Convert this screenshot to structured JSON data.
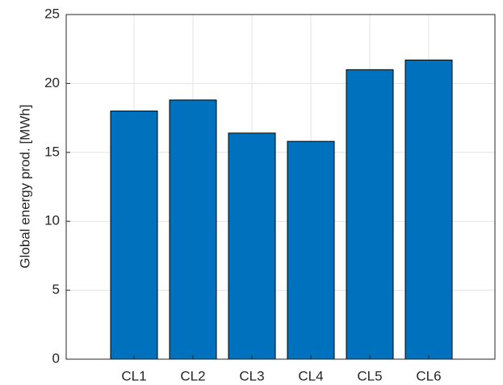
{
  "chart_data": {
    "type": "bar",
    "y_label": "Global energy prod. [MWh]",
    "categories": [
      "CL1",
      "CL2",
      "CL3",
      "CL4",
      "CL5",
      "CL6"
    ],
    "values": [
      18,
      18.8,
      16.4,
      15.8,
      21,
      21.7
    ],
    "color": "#0072bd",
    "ylim": [
      0,
      25
    ],
    "yticks": [
      0,
      5,
      10,
      15,
      20,
      25
    ],
    "grid": true
  }
}
